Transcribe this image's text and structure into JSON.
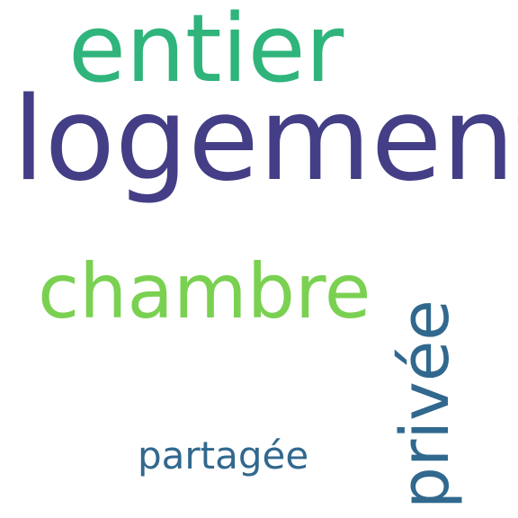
{
  "words": [
    {
      "text": "entier",
      "color": "#2fb47c"
    },
    {
      "text": "logement",
      "color": "#433e85"
    },
    {
      "text": "chambre",
      "color": "#7ad151"
    },
    {
      "text": "privée",
      "color": "#31688e"
    },
    {
      "text": "partagée",
      "color": "#31688e"
    }
  ]
}
